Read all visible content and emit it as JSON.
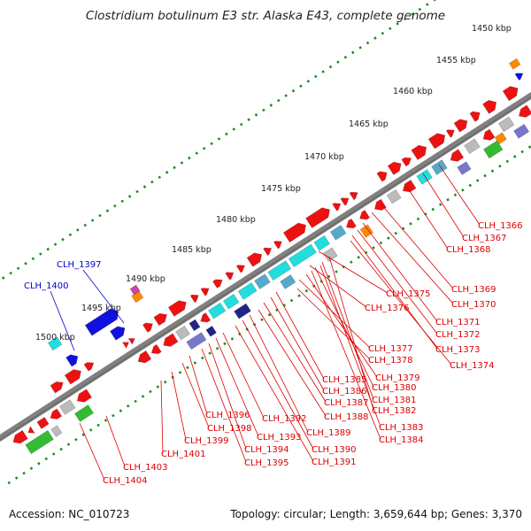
{
  "title": "Clostridium botulinum E3 str. Alaska E43, complete genome",
  "footer": {
    "accession": "Accession: NC_010723",
    "summary": "Topology: circular; Length: 3,659,644 bp; Genes: 3,370"
  },
  "kbp_ticks": [
    "1450 kbp",
    "1455 kbp",
    "1460 kbp",
    "1465 kbp",
    "1470 kbp",
    "1475 kbp",
    "1480 kbp",
    "1485 kbp",
    "1490 kbp",
    "1495 kbp",
    "1500 kbp"
  ],
  "gene_labels_red": [
    "CLH_1366",
    "CLH_1367",
    "CLH_1368",
    "CLH_1369",
    "CLH_1370",
    "CLH_1371",
    "CLH_1372",
    "CLH_1373",
    "CLH_1374",
    "CLH_1375",
    "CLH_1376",
    "CLH_1377",
    "CLH_1378",
    "CLH_1379",
    "CLH_1380",
    "CLH_1381",
    "CLH_1382",
    "CLH_1383",
    "CLH_1384",
    "CLH_1385",
    "CLH_1386",
    "CLH_1387",
    "CLH_1388",
    "CLH_1389",
    "CLH_1390",
    "CLH_1391",
    "CLH_1392",
    "CLH_1393",
    "CLH_1394",
    "CLH_1395",
    "CLH_1396",
    "CLH_1398",
    "CLH_1399",
    "CLH_1401",
    "CLH_1403",
    "CLH_1404"
  ],
  "gene_labels_blue": [
    "CLH_1397",
    "CLH_1400"
  ],
  "colors": {
    "backbone": "#808080",
    "tick_dots": "#1a8a1a",
    "red_gene": "#ee1111",
    "blue_gene": "#1111dd",
    "cyan_gene": "#22dddd",
    "teal_gene": "#55aacc",
    "gray_gene": "#bbbbbb",
    "purple_gene": "#7777cc",
    "green_gene": "#33bb33",
    "orange_gene": "#ff8800",
    "navy_gene": "#222288",
    "red_label": "#dd0000",
    "blue_label": "#0000cc"
  }
}
